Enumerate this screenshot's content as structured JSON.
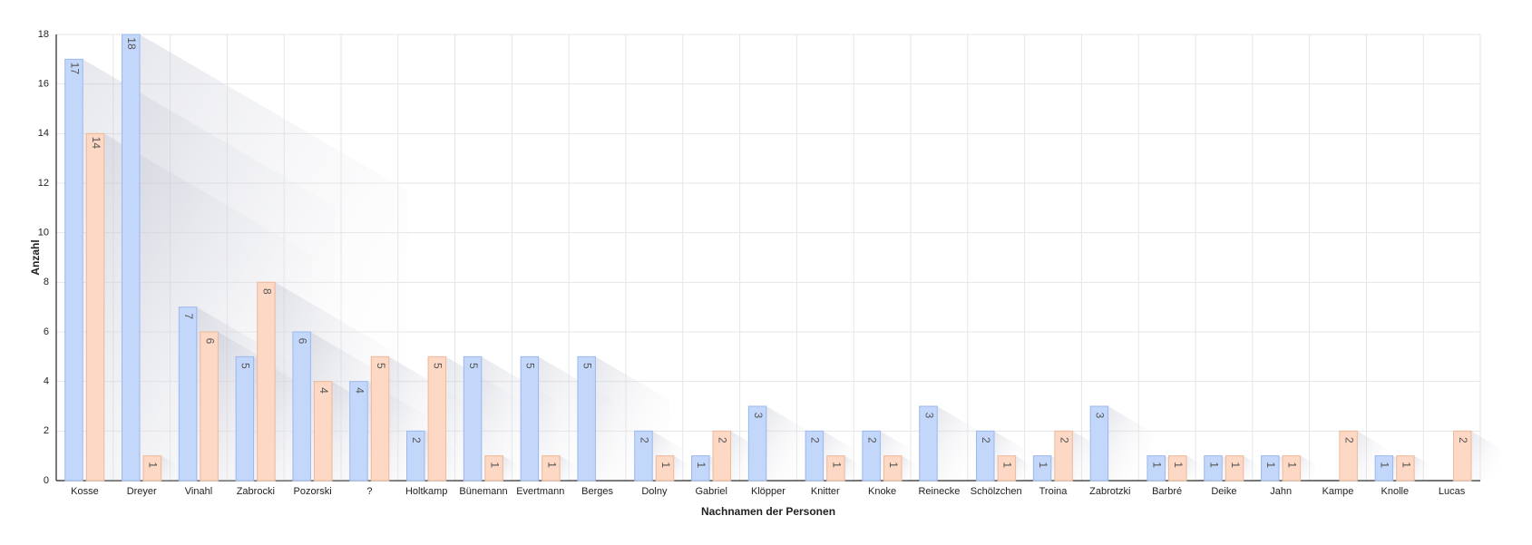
{
  "chart_data": {
    "type": "bar",
    "x_label": "Nachnamen der Personen",
    "y_label": "Anzahl",
    "categories": [
      "Kosse",
      "Dreyer",
      "Vinahl",
      "Zabrocki",
      "Pozorski",
      "?",
      "Holtkamp",
      "Bünemann",
      "Evertmann",
      "Berges",
      "Dolny",
      "Gabriel",
      "Klöpper",
      "Knitter",
      "Knoke",
      "Reinecke",
      "Schölzchen",
      "Troina",
      "Zabrotzki",
      "Barbré",
      "Deike",
      "Jahn",
      "Kampe",
      "Knolle",
      "Lucas"
    ],
    "series": [
      {
        "color": "#c3d7fb",
        "values": [
          17,
          18,
          7,
          5,
          6,
          4,
          2,
          5,
          5,
          5,
          2,
          1,
          3,
          2,
          2,
          3,
          2,
          1,
          3,
          1,
          1,
          1,
          null,
          1,
          null
        ]
      },
      {
        "color": "#fdd8c4",
        "values": [
          14,
          1,
          6,
          8,
          4,
          5,
          5,
          1,
          1,
          null,
          1,
          2,
          null,
          1,
          1,
          null,
          1,
          2,
          null,
          1,
          1,
          1,
          2,
          1,
          2
        ]
      }
    ],
    "ylim": [
      0,
      18
    ],
    "yticks": [
      0,
      2,
      4,
      6,
      8,
      10,
      12,
      14,
      16,
      18
    ],
    "grid": true
  }
}
